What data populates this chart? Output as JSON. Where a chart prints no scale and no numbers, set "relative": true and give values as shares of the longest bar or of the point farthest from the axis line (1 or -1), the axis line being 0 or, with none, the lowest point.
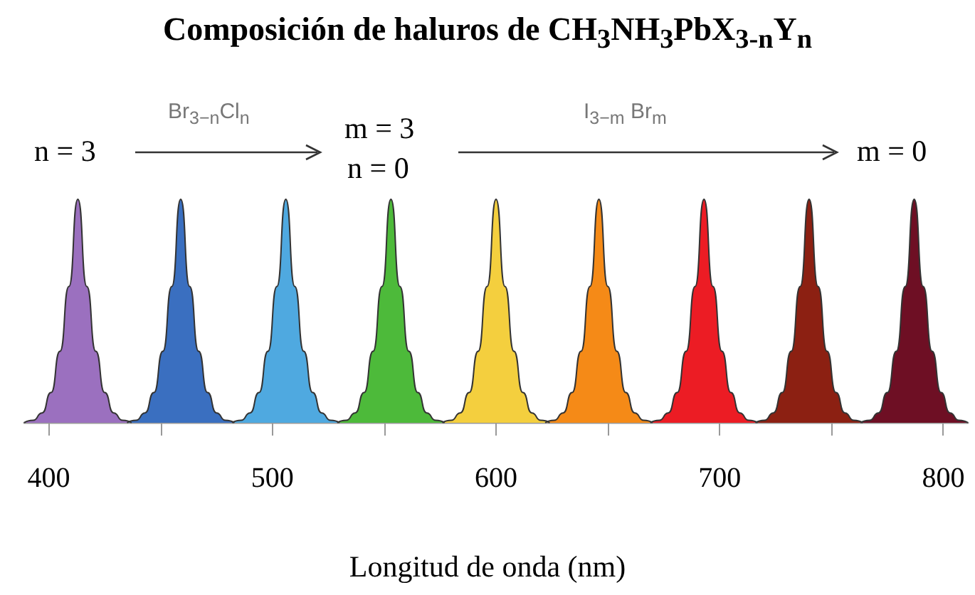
{
  "chart_data": {
    "type": "area",
    "relative": true,
    "title": "Composición de haluros de CH$_{3}$NH$_{3}$PbX$_{3-n}$Y$_{n}$",
    "xlabel": "Longitud de onda (nm)",
    "annotations": [
      "n = 3",
      "Br$_{3−n}$Cl$_{n}$",
      "m = 3",
      "n = 0",
      "I$_{3−m}$ Br$_{m}$",
      "m = 0"
    ],
    "xlim": [
      389,
      811
    ],
    "xticks": [
      400,
      {
        "value": 450,
        "label": null
      },
      500,
      {
        "value": 550,
        "label": null
      },
      600,
      {
        "value": 650,
        "label": null
      },
      700,
      {
        "value": 750,
        "label": null
      },
      800
    ],
    "grid": false,
    "series": [
      {
        "color": "#9b70bf",
        "x": [
          389,
          393,
          397,
          401,
          405,
          409,
          413,
          417,
          421,
          425,
          429,
          433,
          437
        ],
        "values": [
          0,
          0.011,
          0.044,
          0.135,
          0.32,
          0.61,
          1,
          0.61,
          0.32,
          0.135,
          0.044,
          0.011,
          0
        ]
      },
      {
        "color": "#3a6fc0",
        "x": [
          435,
          439,
          443,
          447,
          451,
          455,
          459,
          463,
          467,
          471,
          475,
          479,
          483
        ],
        "values": [
          0,
          0.011,
          0.044,
          0.135,
          0.32,
          0.61,
          1,
          0.61,
          0.32,
          0.135,
          0.044,
          0.011,
          0
        ]
      },
      {
        "color": "#4fa9e0",
        "x": [
          482,
          486,
          490,
          494,
          498,
          502,
          506,
          510,
          514,
          518,
          522,
          526,
          530
        ],
        "values": [
          0,
          0.011,
          0.044,
          0.135,
          0.32,
          0.61,
          1,
          0.61,
          0.32,
          0.135,
          0.044,
          0.011,
          0
        ]
      },
      {
        "color": "#4dba3a",
        "x": [
          529,
          533,
          537,
          541,
          545,
          549,
          553,
          557,
          561,
          565,
          569,
          573,
          577
        ],
        "values": [
          0,
          0.011,
          0.044,
          0.135,
          0.32,
          0.61,
          1,
          0.61,
          0.32,
          0.135,
          0.044,
          0.011,
          0
        ]
      },
      {
        "color": "#f4cf3e",
        "x": [
          576,
          580,
          584,
          588,
          592,
          596,
          600,
          604,
          608,
          612,
          616,
          620,
          624
        ],
        "values": [
          0,
          0.011,
          0.044,
          0.135,
          0.32,
          0.61,
          1,
          0.61,
          0.32,
          0.135,
          0.044,
          0.011,
          0
        ]
      },
      {
        "color": "#f58a17",
        "x": [
          622,
          626,
          630,
          634,
          638,
          642,
          646,
          650,
          654,
          658,
          662,
          666,
          670
        ],
        "values": [
          0,
          0.011,
          0.044,
          0.135,
          0.32,
          0.61,
          1,
          0.61,
          0.32,
          0.135,
          0.044,
          0.011,
          0
        ]
      },
      {
        "color": "#ec1c24",
        "x": [
          669,
          673,
          677,
          681,
          685,
          689,
          693,
          697,
          701,
          705,
          709,
          713,
          717
        ],
        "values": [
          0,
          0.011,
          0.044,
          0.135,
          0.32,
          0.61,
          1,
          0.61,
          0.32,
          0.135,
          0.044,
          0.011,
          0
        ]
      },
      {
        "color": "#8c2012",
        "x": [
          716,
          720,
          724,
          728,
          732,
          736,
          740,
          744,
          748,
          752,
          756,
          760,
          764
        ],
        "values": [
          0,
          0.011,
          0.044,
          0.135,
          0.32,
          0.61,
          1,
          0.61,
          0.32,
          0.135,
          0.044,
          0.011,
          0
        ]
      },
      {
        "color": "#6e0f24",
        "x": [
          763,
          767,
          771,
          775,
          779,
          783,
          787,
          791,
          795,
          799,
          803,
          807,
          811
        ],
        "values": [
          0,
          0.011,
          0.044,
          0.135,
          0.32,
          0.61,
          1,
          0.61,
          0.32,
          0.135,
          0.044,
          0.011,
          0
        ]
      }
    ]
  }
}
